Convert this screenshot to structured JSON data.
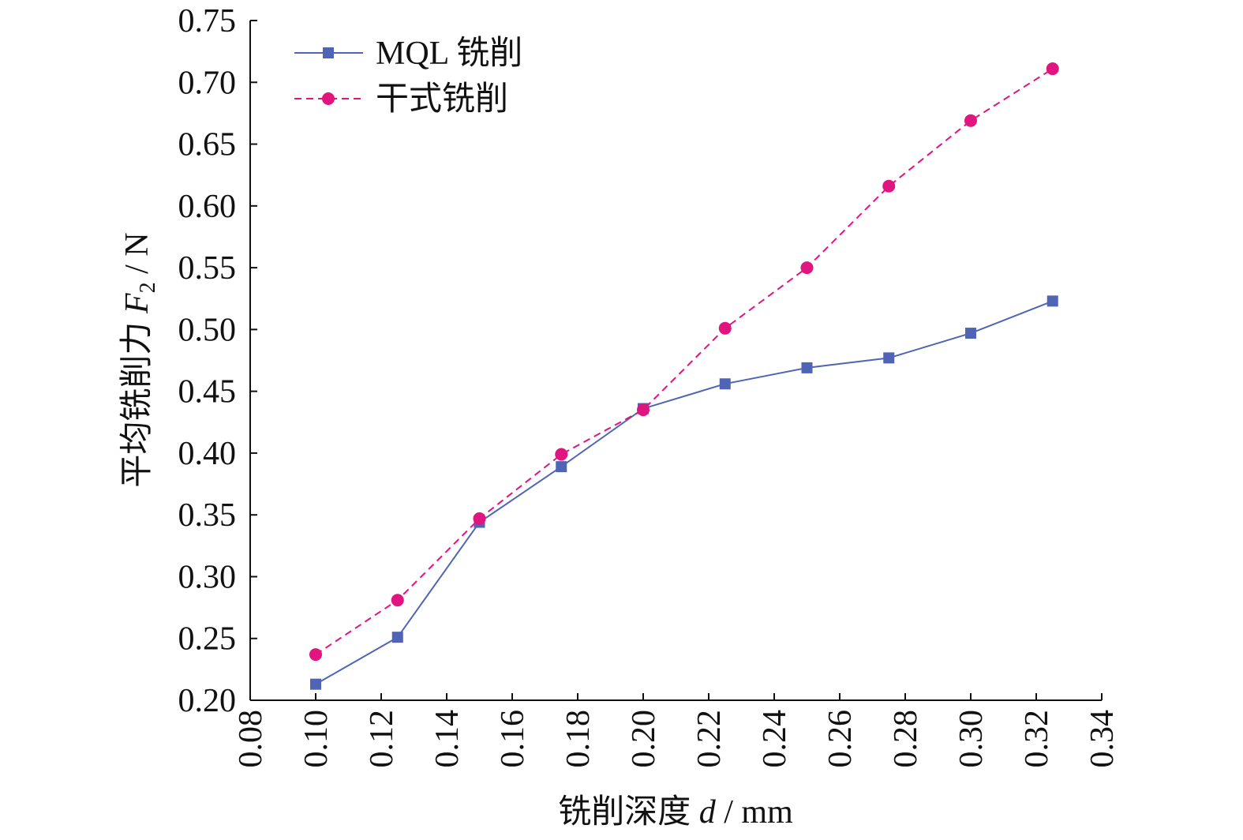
{
  "chart_data": {
    "type": "line",
    "xlabel": {
      "prefix": "铣削深度 ",
      "var": "d",
      "suffix": " / mm"
    },
    "ylabel": {
      "prefix": "平均铣削力 ",
      "var": "F",
      "sub": "2",
      "suffix": " / N"
    },
    "xlim": [
      0.08,
      0.34
    ],
    "ylim": [
      0.2,
      0.75
    ],
    "x_ticks": [
      "0.08",
      "0.10",
      "0.12",
      "0.14",
      "0.16",
      "0.18",
      "0.20",
      "0.22",
      "0.24",
      "0.26",
      "0.28",
      "0.30",
      "0.32",
      "0.34"
    ],
    "y_ticks": [
      "0.20",
      "0.25",
      "0.30",
      "0.35",
      "0.40",
      "0.45",
      "0.50",
      "0.55",
      "0.60",
      "0.65",
      "0.70",
      "0.75"
    ],
    "grid": false,
    "legend_position": "top-left",
    "x": [
      0.1,
      0.125,
      0.15,
      0.175,
      0.2,
      0.225,
      0.25,
      0.275,
      0.3,
      0.325
    ],
    "series": [
      {
        "name": "MQL 铣削",
        "color": "#4f64b4",
        "marker": "square",
        "line_style": "solid",
        "values": [
          0.213,
          0.251,
          0.344,
          0.389,
          0.436,
          0.456,
          0.469,
          0.477,
          0.497,
          0.523
        ]
      },
      {
        "name": "干式铣削",
        "color": "#e0157f",
        "marker": "circle",
        "line_style": "dashed",
        "values": [
          0.237,
          0.281,
          0.347,
          0.399,
          0.435,
          0.501,
          0.55,
          0.616,
          0.669,
          0.711
        ]
      }
    ]
  }
}
